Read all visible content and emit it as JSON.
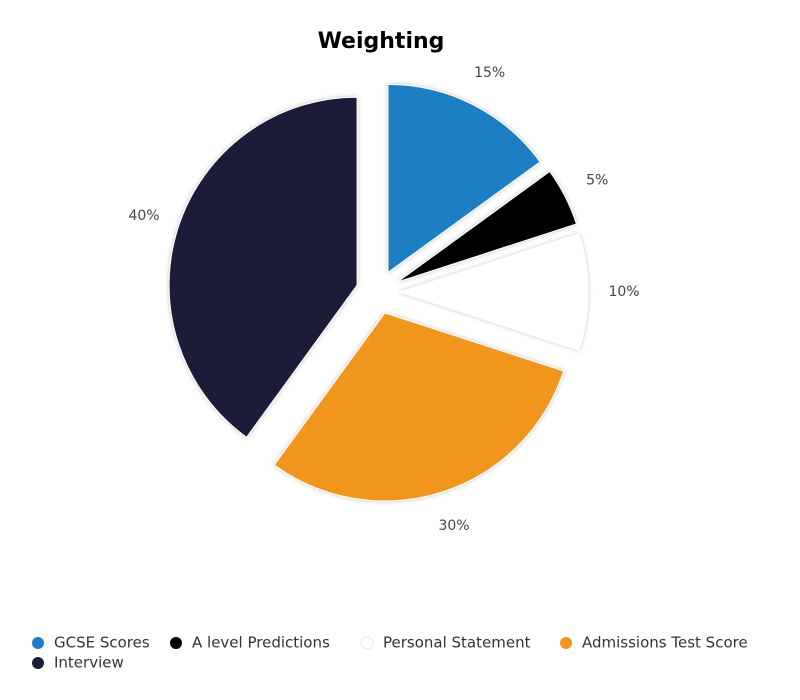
{
  "chart_data": {
    "type": "pie",
    "title": "Weighting",
    "categories": [
      "GCSE Scores",
      "A level Predictions",
      "Personal Statement",
      "Admissions Test Score",
      "Interview"
    ],
    "values": [
      15,
      5,
      10,
      30,
      40
    ],
    "value_labels": [
      "15%",
      "5%",
      "10%",
      "30%",
      "40%"
    ],
    "colors": [
      "#1f7fc4",
      "#000000",
      "#ffffff",
      "#f0961e",
      "#1a1e38"
    ],
    "legend": "bottom"
  }
}
